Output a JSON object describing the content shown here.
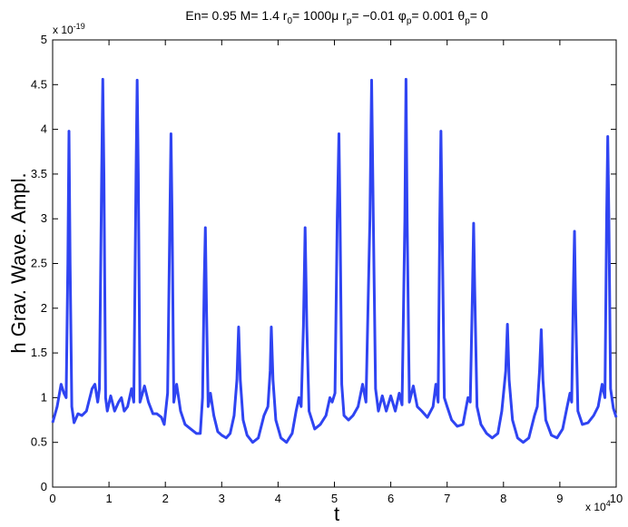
{
  "chart_data": {
    "type": "line",
    "title": [
      "En= 0.95 M= 1.4 r",
      "0",
      "= 1000μ r",
      "p",
      "= −0.01 φ",
      "p",
      "= 0.001 θ",
      "p",
      "= 0"
    ],
    "xlabel": "t",
    "ylabel": "h Grav. Wave. Ampl.",
    "x_multiplier": {
      "base": "x 10",
      "exponent": "4"
    },
    "y_multiplier": {
      "base": "x 10",
      "exponent": "-19"
    },
    "xlim": [
      0,
      10
    ],
    "ylim": [
      0,
      5
    ],
    "xticks": [
      0,
      1,
      2,
      3,
      4,
      5,
      6,
      7,
      8,
      9,
      10
    ],
    "yticks": [
      0,
      0.5,
      1,
      1.5,
      2,
      2.5,
      3,
      3.5,
      4,
      4.5,
      5
    ],
    "grid": false,
    "series": [
      {
        "color": "#2f44f2",
        "x": [
          0,
          0.08,
          0.15,
          0.2,
          0.24,
          0.27,
          0.29,
          0.31,
          0.34,
          0.38,
          0.45,
          0.52,
          0.6,
          0.7,
          0.75,
          0.8,
          0.83,
          0.87,
          0.89,
          0.91,
          0.94,
          0.97,
          1.03,
          1.1,
          1.17,
          1.22,
          1.27,
          1.33,
          1.4,
          1.44,
          1.48,
          1.5,
          1.52,
          1.55,
          1.63,
          1.7,
          1.78,
          1.85,
          1.93,
          1.98,
          2.04,
          2.08,
          2.1,
          2.12,
          2.15,
          2.2,
          2.27,
          2.35,
          2.45,
          2.55,
          2.62,
          2.66,
          2.69,
          2.71,
          2.73,
          2.76,
          2.8,
          2.86,
          2.93,
          3.0,
          3.08,
          3.15,
          3.22,
          3.27,
          3.3,
          3.33,
          3.38,
          3.45,
          3.55,
          3.65,
          3.75,
          3.82,
          3.86,
          3.88,
          3.91,
          3.96,
          4.05,
          4.15,
          4.25,
          4.32,
          4.37,
          4.41,
          4.45,
          4.48,
          4.51,
          4.55,
          4.65,
          4.75,
          4.85,
          4.92,
          4.96,
          5.01,
          5.05,
          5.08,
          5.1,
          5.13,
          5.17,
          5.25,
          5.33,
          5.42,
          5.5,
          5.56,
          5.63,
          5.66,
          5.69,
          5.73,
          5.78,
          5.85,
          5.92,
          6.0,
          6.08,
          6.15,
          6.2,
          6.25,
          6.27,
          6.29,
          6.33,
          6.4,
          6.47,
          6.55,
          6.65,
          6.75,
          6.8,
          6.84,
          6.87,
          6.89,
          6.91,
          6.95,
          7.0,
          7.08,
          7.18,
          7.28,
          7.37,
          7.41,
          7.45,
          7.47,
          7.49,
          7.53,
          7.6,
          7.7,
          7.8,
          7.9,
          7.97,
          8.04,
          8.07,
          8.1,
          8.16,
          8.25,
          8.35,
          8.45,
          8.55,
          8.6,
          8.64,
          8.67,
          8.7,
          8.75,
          8.85,
          8.95,
          9.05,
          9.13,
          9.18,
          9.21,
          9.24,
          9.26,
          9.28,
          9.32,
          9.4,
          9.5,
          9.6,
          9.68,
          9.75,
          9.8,
          9.83,
          9.85,
          9.87,
          9.9,
          9.95,
          10.0
        ],
        "values": [
          0.72,
          0.9,
          1.15,
          1.05,
          1.0,
          2.5,
          3.98,
          2.5,
          0.9,
          0.72,
          0.82,
          0.8,
          0.85,
          1.1,
          1.15,
          0.95,
          1.1,
          3.5,
          4.56,
          3.5,
          1.0,
          0.85,
          1.02,
          0.85,
          0.95,
          1.0,
          0.85,
          0.9,
          1.1,
          0.95,
          3.5,
          4.55,
          3.5,
          0.95,
          1.13,
          0.95,
          0.82,
          0.82,
          0.78,
          0.7,
          1.05,
          3.0,
          3.95,
          3.0,
          0.95,
          1.15,
          0.85,
          0.7,
          0.65,
          0.6,
          0.6,
          1.0,
          2.3,
          2.9,
          2.0,
          0.9,
          1.05,
          0.8,
          0.62,
          0.58,
          0.55,
          0.6,
          0.8,
          1.2,
          1.79,
          1.2,
          0.75,
          0.58,
          0.5,
          0.55,
          0.8,
          0.9,
          1.3,
          1.79,
          1.2,
          0.75,
          0.55,
          0.5,
          0.6,
          0.85,
          1.0,
          0.9,
          1.8,
          2.9,
          1.8,
          0.85,
          0.65,
          0.7,
          0.8,
          1.0,
          0.95,
          1.05,
          3.0,
          3.95,
          3.0,
          1.15,
          0.8,
          0.75,
          0.8,
          0.9,
          1.15,
          0.95,
          3.0,
          4.55,
          3.0,
          1.1,
          0.85,
          1.02,
          0.85,
          1.02,
          0.85,
          1.05,
          0.92,
          3.0,
          4.56,
          3.0,
          0.95,
          1.13,
          0.9,
          0.85,
          0.78,
          0.9,
          1.15,
          0.95,
          3.0,
          3.98,
          3.0,
          1.0,
          0.9,
          0.75,
          0.68,
          0.7,
          1.0,
          0.95,
          2.2,
          2.95,
          2.2,
          0.9,
          0.7,
          0.6,
          0.55,
          0.6,
          0.85,
          1.3,
          1.82,
          1.2,
          0.75,
          0.55,
          0.5,
          0.55,
          0.8,
          0.9,
          1.3,
          1.76,
          1.2,
          0.75,
          0.58,
          0.55,
          0.65,
          0.9,
          1.05,
          0.95,
          2.2,
          2.86,
          2.0,
          0.85,
          0.7,
          0.72,
          0.8,
          0.9,
          1.15,
          1.0,
          3.0,
          3.92,
          3.0,
          1.1,
          0.88,
          0.78
        ]
      }
    ]
  }
}
